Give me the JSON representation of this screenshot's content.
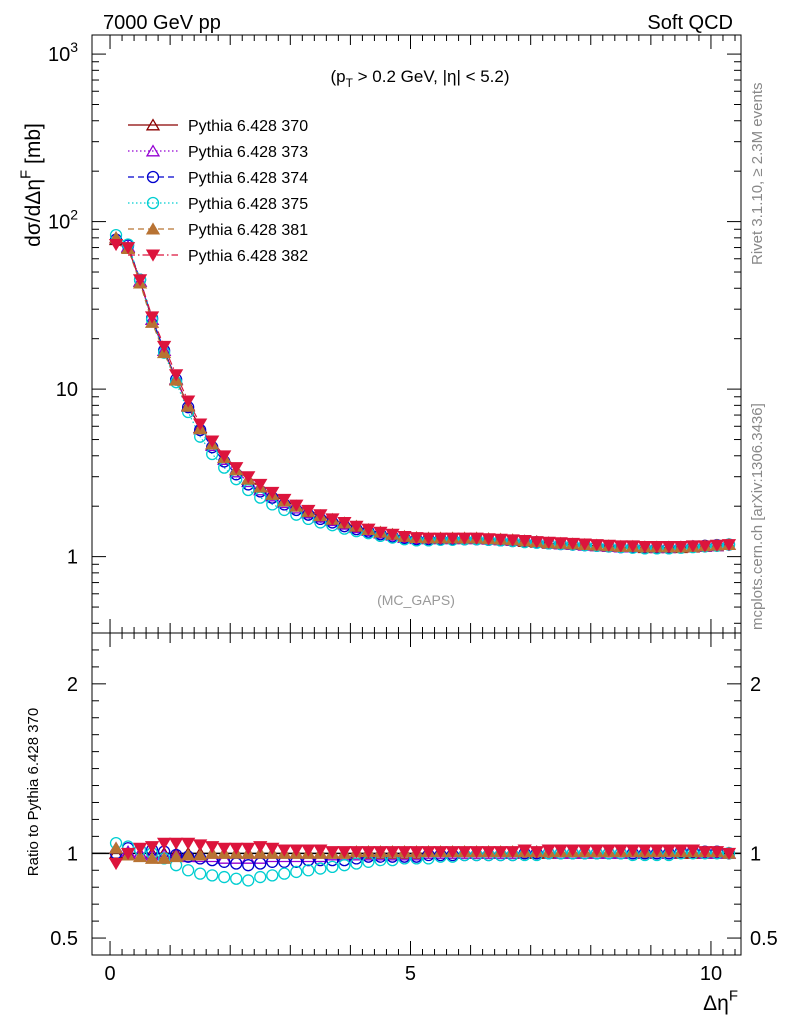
{
  "header": {
    "left": "7000 GeV pp",
    "right": "Soft QCD"
  },
  "side_labels": {
    "rivet": "Rivet 3.1.10, ≥ 2.3M events",
    "mcplots": "mcplots.cern.ch [arXiv:1306.3436]"
  },
  "chart_data": [
    {
      "type": "scatter",
      "panel": "main",
      "cut_label": "(p_T > 0.2 GeV, |η| < 5.2)",
      "analysis_label": "(MC_GAPS)",
      "ylabel": "dσ/dΔη^F [mb]",
      "xlabel": "Δη^F",
      "xlim": [
        -0.3,
        10.5
      ],
      "ylim": [
        0.35,
        1300
      ],
      "yscale": "log",
      "yticks": [
        {
          "value": 1,
          "label": "1"
        },
        {
          "value": 10,
          "label": "10"
        },
        {
          "value": 100,
          "label": "10^2"
        },
        {
          "value": 1000,
          "label": "10^3"
        }
      ],
      "x": [
        0.1,
        0.3,
        0.5,
        0.7,
        0.9,
        1.1,
        1.3,
        1.5,
        1.7,
        1.9,
        2.1,
        2.3,
        2.5,
        2.7,
        2.9,
        3.1,
        3.3,
        3.5,
        3.7,
        3.9,
        4.1,
        4.3,
        4.5,
        4.7,
        4.9,
        5.1,
        5.3,
        5.5,
        5.7,
        5.9,
        6.1,
        6.3,
        6.5,
        6.7,
        6.9,
        7.1,
        7.3,
        7.5,
        7.7,
        7.9,
        8.1,
        8.3,
        8.5,
        8.7,
        8.9,
        9.1,
        9.3,
        9.5,
        9.7,
        9.9,
        10.1,
        10.3
      ],
      "series": [
        {
          "name": "Pythia 6.428 370",
          "color": "#8b0000",
          "marker": "triangle-up-open",
          "line": "solid",
          "values": [
            78,
            70,
            44,
            26,
            17,
            11.5,
            8.0,
            5.9,
            4.7,
            3.9,
            3.3,
            2.9,
            2.6,
            2.35,
            2.15,
            2.0,
            1.85,
            1.75,
            1.66,
            1.58,
            1.5,
            1.44,
            1.39,
            1.35,
            1.31,
            1.29,
            1.28,
            1.28,
            1.28,
            1.28,
            1.28,
            1.27,
            1.26,
            1.25,
            1.23,
            1.22,
            1.2,
            1.19,
            1.18,
            1.17,
            1.16,
            1.15,
            1.14,
            1.14,
            1.13,
            1.13,
            1.13,
            1.13,
            1.14,
            1.15,
            1.16,
            1.18
          ]
        },
        {
          "name": "Pythia 6.428 373",
          "color": "#9400d3",
          "marker": "triangle-up-open",
          "line": "dotted",
          "values": [
            80,
            71,
            44,
            26,
            17,
            11.4,
            7.9,
            5.8,
            4.6,
            3.8,
            3.2,
            2.8,
            2.5,
            2.3,
            2.1,
            1.95,
            1.82,
            1.72,
            1.64,
            1.56,
            1.49,
            1.43,
            1.38,
            1.34,
            1.3,
            1.28,
            1.28,
            1.28,
            1.28,
            1.28,
            1.28,
            1.27,
            1.26,
            1.25,
            1.24,
            1.23,
            1.21,
            1.19,
            1.18,
            1.17,
            1.16,
            1.15,
            1.14,
            1.14,
            1.14,
            1.13,
            1.13,
            1.14,
            1.15,
            1.15,
            1.16,
            1.18
          ]
        },
        {
          "name": "Pythia 6.428 374",
          "color": "#0000cd",
          "marker": "circle-open",
          "line": "dashed",
          "values": [
            78,
            72,
            45,
            26.5,
            17,
            11.4,
            7.8,
            5.7,
            4.5,
            3.7,
            3.1,
            2.7,
            2.45,
            2.25,
            2.05,
            1.9,
            1.78,
            1.68,
            1.6,
            1.52,
            1.46,
            1.41,
            1.36,
            1.32,
            1.29,
            1.27,
            1.27,
            1.27,
            1.27,
            1.27,
            1.27,
            1.26,
            1.25,
            1.24,
            1.23,
            1.22,
            1.2,
            1.19,
            1.18,
            1.17,
            1.16,
            1.15,
            1.14,
            1.14,
            1.13,
            1.13,
            1.13,
            1.14,
            1.15,
            1.16,
            1.17,
            1.18
          ]
        },
        {
          "name": "Pythia 6.428 375",
          "color": "#00ced1",
          "marker": "circle-open",
          "line": "dotted",
          "values": [
            83,
            73,
            45,
            26,
            16.5,
            11.0,
            7.3,
            5.2,
            4.1,
            3.4,
            2.9,
            2.5,
            2.25,
            2.05,
            1.9,
            1.78,
            1.68,
            1.6,
            1.54,
            1.47,
            1.42,
            1.38,
            1.33,
            1.3,
            1.27,
            1.25,
            1.25,
            1.26,
            1.26,
            1.27,
            1.27,
            1.26,
            1.25,
            1.24,
            1.22,
            1.21,
            1.2,
            1.19,
            1.18,
            1.17,
            1.16,
            1.15,
            1.14,
            1.13,
            1.12,
            1.12,
            1.12,
            1.13,
            1.14,
            1.15,
            1.16,
            1.18
          ]
        },
        {
          "name": "Pythia 6.428 381",
          "color": "#b87333",
          "marker": "triangle-up-filled",
          "line": "dashed",
          "values": [
            80,
            69,
            43,
            25,
            16.5,
            11.3,
            7.9,
            5.8,
            4.7,
            3.9,
            3.3,
            2.9,
            2.6,
            2.35,
            2.15,
            2.0,
            1.86,
            1.76,
            1.67,
            1.59,
            1.52,
            1.45,
            1.4,
            1.36,
            1.32,
            1.3,
            1.29,
            1.29,
            1.29,
            1.29,
            1.29,
            1.28,
            1.27,
            1.26,
            1.24,
            1.23,
            1.21,
            1.2,
            1.19,
            1.18,
            1.17,
            1.16,
            1.15,
            1.15,
            1.14,
            1.14,
            1.14,
            1.14,
            1.15,
            1.16,
            1.17,
            1.18
          ]
        },
        {
          "name": "Pythia 6.428 382",
          "color": "#dc143c",
          "marker": "triangle-down-filled",
          "line": "dashdot",
          "values": [
            73,
            70,
            45,
            27,
            18,
            12.2,
            8.5,
            6.2,
            4.9,
            4.0,
            3.4,
            3.0,
            2.7,
            2.42,
            2.2,
            2.03,
            1.89,
            1.78,
            1.68,
            1.6,
            1.52,
            1.46,
            1.4,
            1.36,
            1.32,
            1.3,
            1.29,
            1.29,
            1.29,
            1.29,
            1.29,
            1.28,
            1.27,
            1.26,
            1.25,
            1.23,
            1.22,
            1.21,
            1.2,
            1.19,
            1.18,
            1.17,
            1.16,
            1.16,
            1.15,
            1.15,
            1.15,
            1.15,
            1.16,
            1.16,
            1.17,
            1.18
          ]
        }
      ]
    },
    {
      "type": "scatter",
      "panel": "ratio",
      "ylabel": "Ratio to Pythia 6.428 370",
      "xlabel": "Δη^F",
      "xlim": [
        -0.3,
        10.5
      ],
      "ylim": [
        0.4,
        2.3
      ],
      "yticks": [
        {
          "value": 0.5,
          "label": "0.5"
        },
        {
          "value": 1,
          "label": "1"
        },
        {
          "value": 2,
          "label": "2"
        }
      ],
      "xticks": [
        {
          "value": 0,
          "label": "0"
        },
        {
          "value": 5,
          "label": "5"
        },
        {
          "value": 10,
          "label": "10"
        }
      ],
      "x": [
        0.1,
        0.3,
        0.5,
        0.7,
        0.9,
        1.1,
        1.3,
        1.5,
        1.7,
        1.9,
        2.1,
        2.3,
        2.5,
        2.7,
        2.9,
        3.1,
        3.3,
        3.5,
        3.7,
        3.9,
        4.1,
        4.3,
        4.5,
        4.7,
        4.9,
        5.1,
        5.3,
        5.5,
        5.7,
        5.9,
        6.1,
        6.3,
        6.5,
        6.7,
        6.9,
        7.1,
        7.3,
        7.5,
        7.7,
        7.9,
        8.1,
        8.3,
        8.5,
        8.7,
        8.9,
        9.1,
        9.3,
        9.5,
        9.7,
        9.9,
        10.1,
        10.3
      ],
      "series": [
        {
          "name": "Pythia 6.428 370",
          "color": "#8b0000",
          "marker": "triangle-up-open",
          "line": "solid",
          "values": [
            1.0,
            1.0,
            1.0,
            1.0,
            1.0,
            1.0,
            1.0,
            1.0,
            1.0,
            1.0,
            1.0,
            1.0,
            1.0,
            1.0,
            1.0,
            1.0,
            1.0,
            1.0,
            1.0,
            1.0,
            1.0,
            1.0,
            1.0,
            1.0,
            1.0,
            1.0,
            1.0,
            1.0,
            1.0,
            1.0,
            1.0,
            1.0,
            1.0,
            1.0,
            1.0,
            1.0,
            1.0,
            1.0,
            1.0,
            1.0,
            1.0,
            1.0,
            1.0,
            1.0,
            1.0,
            1.0,
            1.0,
            1.0,
            1.0,
            1.0,
            1.0,
            1.0
          ]
        },
        {
          "name": "Pythia 6.428 373",
          "color": "#9400d3",
          "marker": "triangle-up-open",
          "line": "dotted",
          "values": [
            1.03,
            1.01,
            1.0,
            0.99,
            0.99,
            0.99,
            0.98,
            0.98,
            0.98,
            0.97,
            0.97,
            0.97,
            0.97,
            0.98,
            0.98,
            0.98,
            0.98,
            0.98,
            0.99,
            0.99,
            0.99,
            0.99,
            0.99,
            0.99,
            0.99,
            0.99,
            1.0,
            1.0,
            1.0,
            1.0,
            1.0,
            1.0,
            1.0,
            1.0,
            1.01,
            1.01,
            1.01,
            1.0,
            1.0,
            1.0,
            1.0,
            1.0,
            1.0,
            1.0,
            1.01,
            1.0,
            1.0,
            1.01,
            1.01,
            1.0,
            1.0,
            1.0
          ]
        },
        {
          "name": "Pythia 6.428 374",
          "color": "#0000cd",
          "marker": "circle-open",
          "line": "dashed",
          "values": [
            1.0,
            1.03,
            1.02,
            1.02,
            1.01,
            0.99,
            0.98,
            0.97,
            0.96,
            0.95,
            0.94,
            0.93,
            0.94,
            0.95,
            0.95,
            0.95,
            0.96,
            0.96,
            0.96,
            0.96,
            0.97,
            0.98,
            0.98,
            0.98,
            0.98,
            0.98,
            0.99,
            0.99,
            0.99,
            0.99,
            0.99,
            0.99,
            0.99,
            0.99,
            1.0,
            1.0,
            1.0,
            1.0,
            1.0,
            1.0,
            1.0,
            1.0,
            1.0,
            1.0,
            1.0,
            1.0,
            1.0,
            1.01,
            1.01,
            1.01,
            1.01,
            1.0
          ]
        },
        {
          "name": "Pythia 6.428 375",
          "color": "#00ced1",
          "marker": "circle-open",
          "line": "dotted",
          "values": [
            1.06,
            1.04,
            1.02,
            1.0,
            0.97,
            0.93,
            0.9,
            0.88,
            0.87,
            0.86,
            0.85,
            0.84,
            0.86,
            0.87,
            0.88,
            0.89,
            0.9,
            0.91,
            0.92,
            0.93,
            0.94,
            0.95,
            0.96,
            0.96,
            0.97,
            0.97,
            0.97,
            0.98,
            0.98,
            0.99,
            0.99,
            0.99,
            0.99,
            0.99,
            0.99,
            0.99,
            1.0,
            1.0,
            1.0,
            1.0,
            1.0,
            1.0,
            1.0,
            0.99,
            0.99,
            0.99,
            0.99,
            1.0,
            1.0,
            1.0,
            1.0,
            1.0
          ]
        },
        {
          "name": "Pythia 6.428 381",
          "color": "#b87333",
          "marker": "triangle-up-filled",
          "line": "dashed",
          "values": [
            1.03,
            0.99,
            0.98,
            0.97,
            0.97,
            0.98,
            0.99,
            0.99,
            1.0,
            1.0,
            1.0,
            1.0,
            1.0,
            1.0,
            1.0,
            1.0,
            1.0,
            1.0,
            1.0,
            1.0,
            1.01,
            1.01,
            1.01,
            1.01,
            1.01,
            1.01,
            1.01,
            1.01,
            1.01,
            1.01,
            1.01,
            1.01,
            1.01,
            1.01,
            1.01,
            1.01,
            1.01,
            1.01,
            1.01,
            1.01,
            1.01,
            1.01,
            1.01,
            1.01,
            1.01,
            1.01,
            1.01,
            1.01,
            1.01,
            1.01,
            1.01,
            1.0
          ]
        },
        {
          "name": "Pythia 6.428 382",
          "color": "#dc143c",
          "marker": "triangle-down-filled",
          "line": "dashdot",
          "values": [
            0.94,
            1.0,
            1.03,
            1.04,
            1.06,
            1.06,
            1.06,
            1.05,
            1.04,
            1.03,
            1.03,
            1.03,
            1.04,
            1.03,
            1.02,
            1.02,
            1.02,
            1.02,
            1.01,
            1.01,
            1.01,
            1.01,
            1.01,
            1.01,
            1.01,
            1.01,
            1.01,
            1.01,
            1.01,
            1.01,
            1.01,
            1.01,
            1.01,
            1.01,
            1.02,
            1.01,
            1.02,
            1.02,
            1.02,
            1.02,
            1.02,
            1.02,
            1.02,
            1.02,
            1.02,
            1.02,
            1.02,
            1.02,
            1.02,
            1.01,
            1.01,
            1.0
          ]
        }
      ]
    }
  ]
}
